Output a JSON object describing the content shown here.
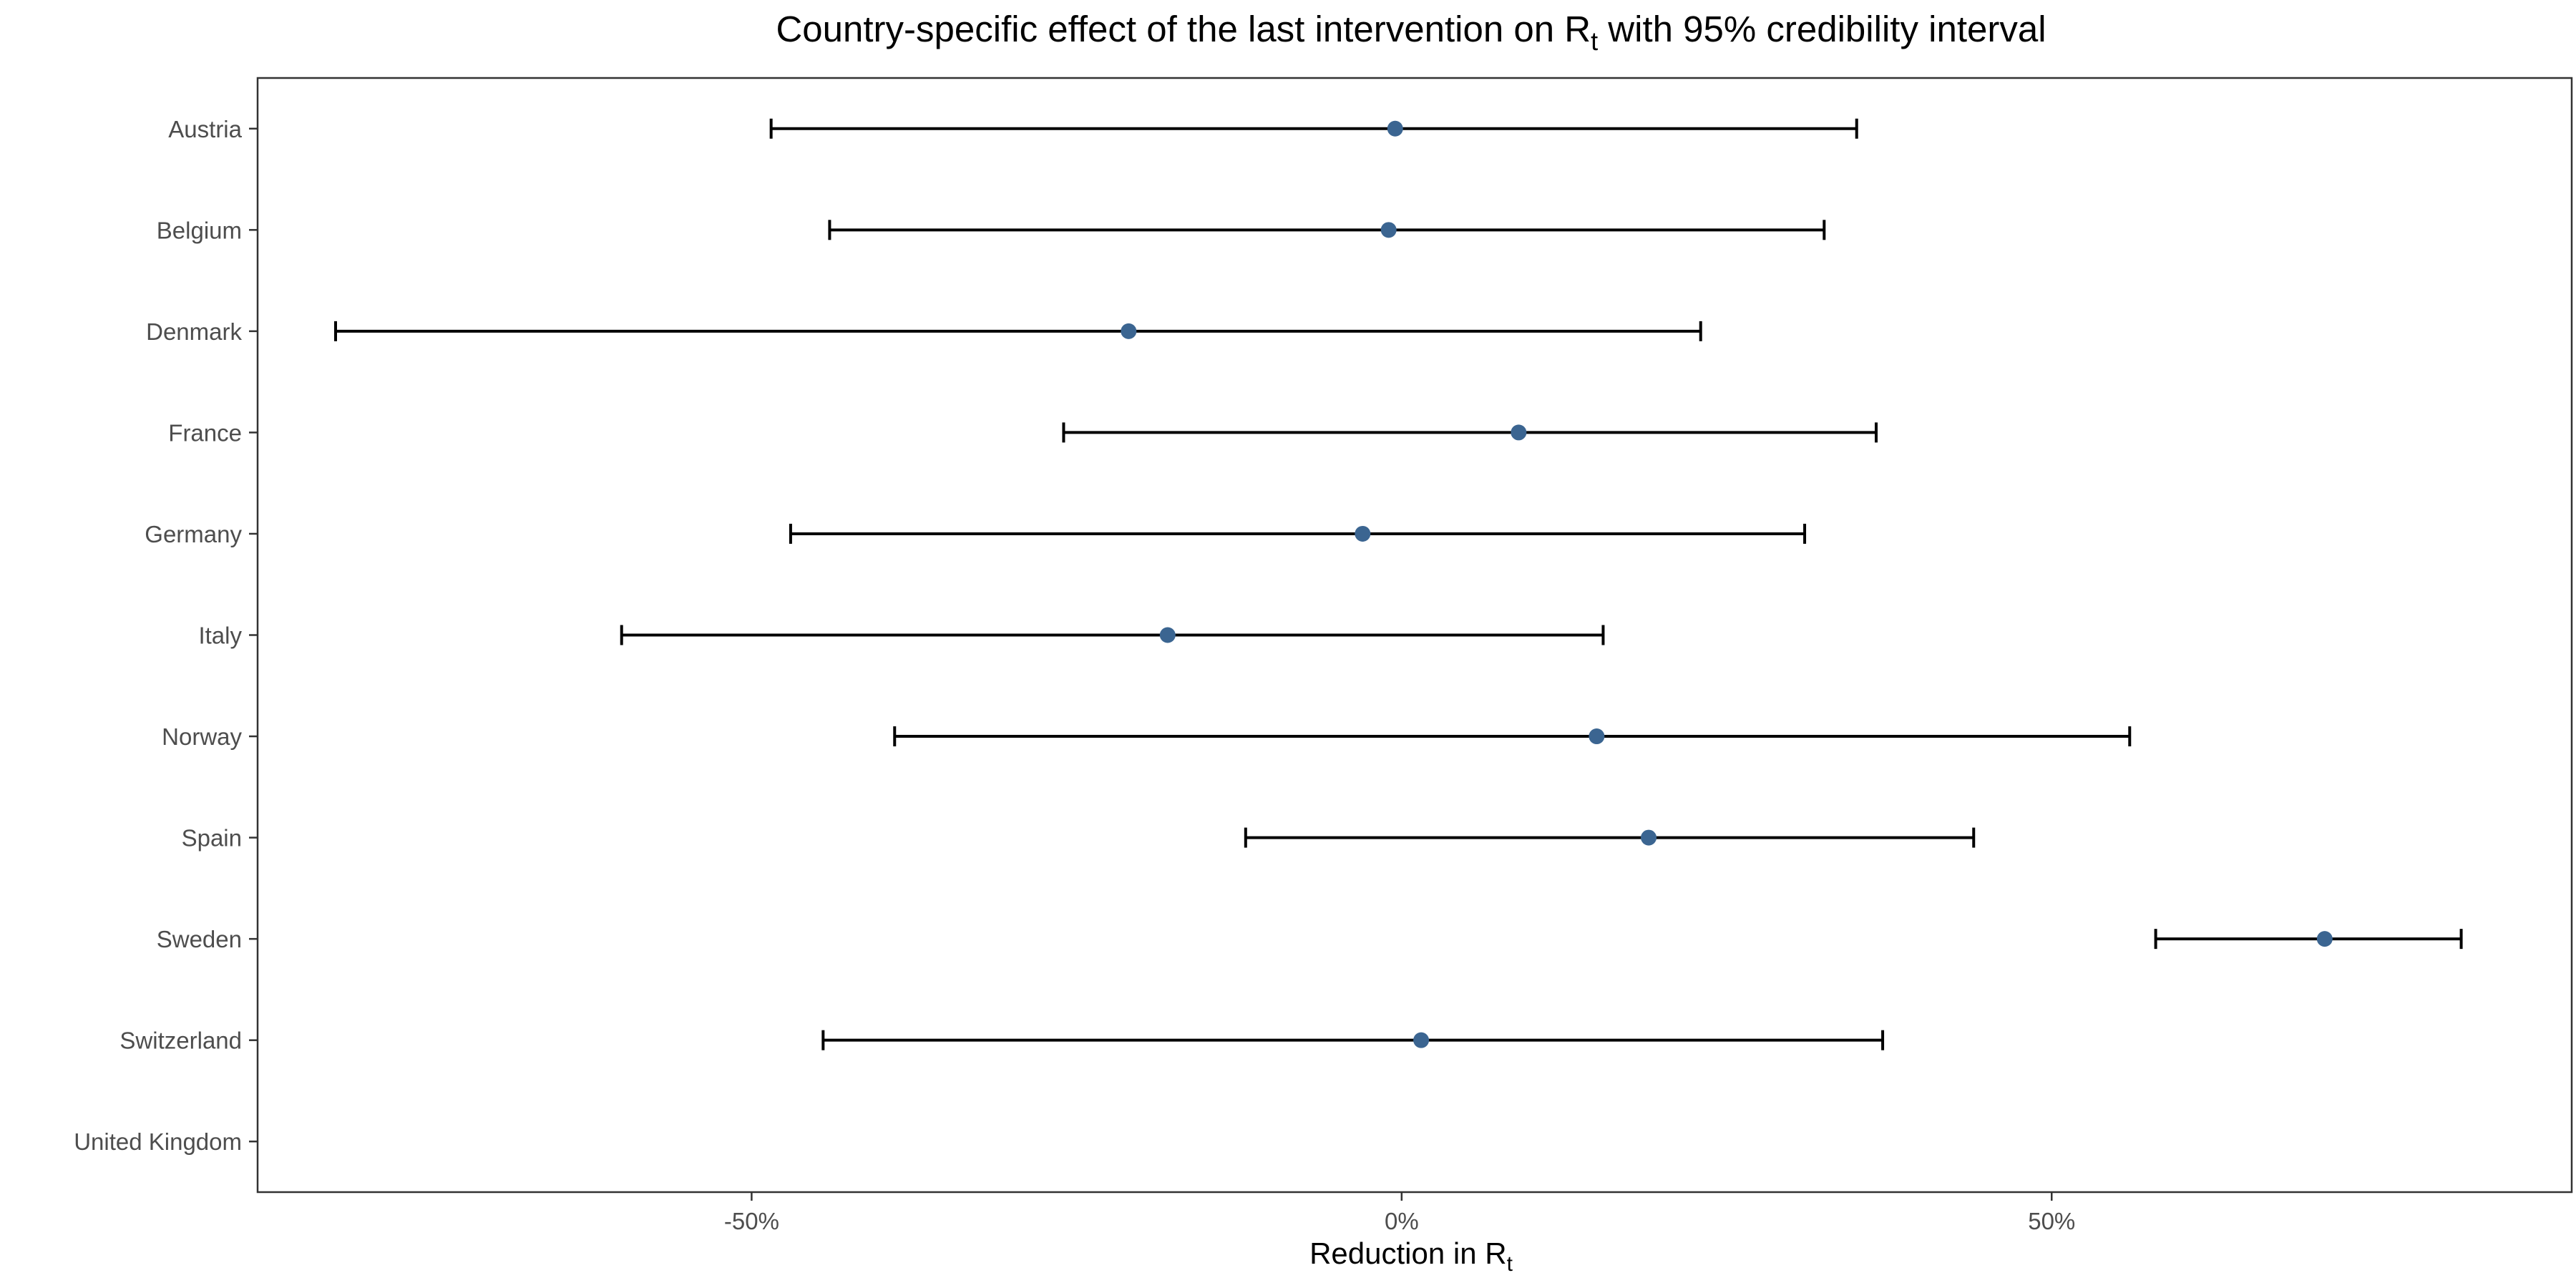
{
  "chart_data": {
    "type": "errorbar",
    "title": "Country-specific effect of the last intervention on R",
    "title_subscript": "t",
    "title_suffix": " with 95% credibility interval",
    "xlabel": "Reduction in R",
    "xlabel_subscript": "t",
    "ylabel": "",
    "xlim": [
      -88,
      90
    ],
    "x_ticks": [
      -50,
      0,
      50
    ],
    "x_tick_labels": [
      "-50%",
      "0%",
      "50%"
    ],
    "categories": [
      "Austria",
      "Belgium",
      "Denmark",
      "France",
      "Germany",
      "Italy",
      "Norway",
      "Spain",
      "Sweden",
      "Switzerland",
      "United Kingdom"
    ],
    "series": [
      {
        "estimate": [
          -0.5,
          -1,
          -21,
          9,
          -3,
          -18,
          15,
          19,
          71,
          1.5,
          null
        ],
        "lower": [
          -48.5,
          -44,
          -82,
          -26,
          -47,
          -60,
          -39,
          -12,
          58,
          -44.5,
          null
        ],
        "upper": [
          35,
          32.5,
          23,
          36.5,
          31,
          15.5,
          56,
          44,
          81.5,
          37,
          null
        ]
      }
    ],
    "grid": false,
    "legend": "none",
    "colors": {
      "point": "#3b6591",
      "errorbar": "#000000",
      "panel_border": "#333333",
      "tick_label": "#4d4d4d"
    }
  }
}
